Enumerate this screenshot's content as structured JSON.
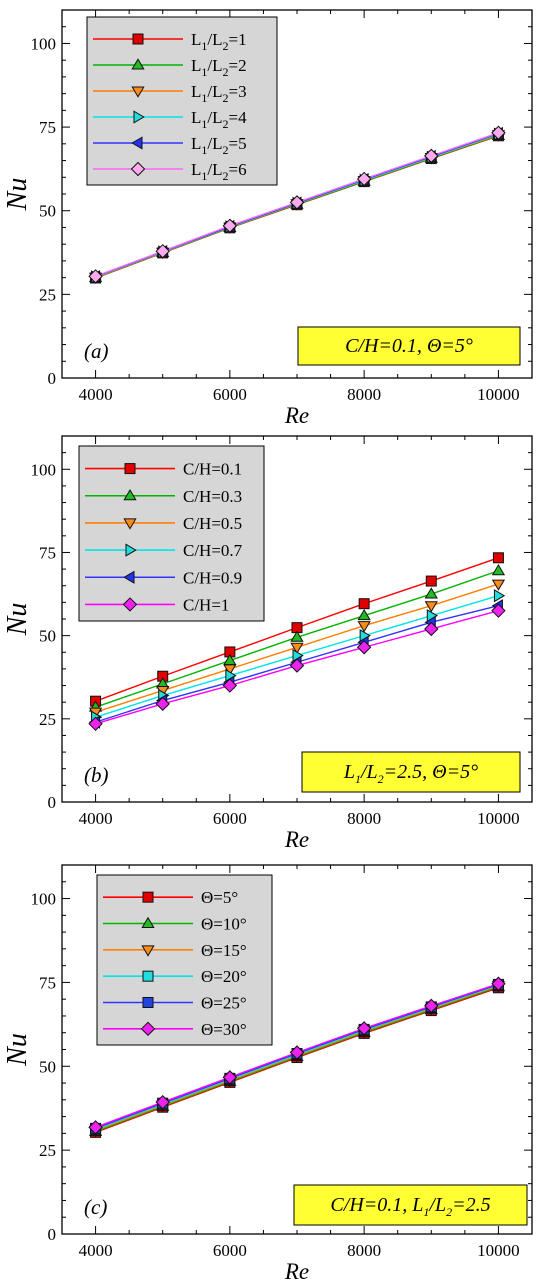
{
  "chart_data": [
    {
      "type": "line",
      "panel_label": "(a)",
      "xlabel": "Re",
      "ylabel": "Nu",
      "xlim": [
        3500,
        10500
      ],
      "ylim": [
        0,
        110
      ],
      "xticks": [
        4000,
        6000,
        8000,
        10000
      ],
      "yticks": [
        0,
        25,
        50,
        75,
        100
      ],
      "x": [
        4000,
        5000,
        6000,
        7000,
        8000,
        9000,
        10000
      ],
      "annotation": {
        "parts": [
          [
            "C/H=0.1,  ",
            "n"
          ],
          [
            "Θ",
            "n"
          ],
          [
            "=5°",
            "n"
          ]
        ]
      },
      "legend_placement": "top-left",
      "series": [
        {
          "name": "L1/L2=1",
          "label_parts": [
            [
              "L",
              "n"
            ],
            [
              "1",
              "sub"
            ],
            [
              "/L",
              "n"
            ],
            [
              "2",
              "sub"
            ],
            [
              "=1",
              "n"
            ]
          ],
          "color": "#ff0000",
          "marker_fill": "#e00000",
          "marker": "square",
          "values": [
            29.9,
            37.4,
            44.9,
            51.8,
            58.7,
            65.6,
            72.4
          ]
        },
        {
          "name": "L1/L2=2",
          "label_parts": [
            [
              "L",
              "n"
            ],
            [
              "1",
              "sub"
            ],
            [
              "/L",
              "n"
            ],
            [
              "2",
              "sub"
            ],
            [
              "=2",
              "n"
            ]
          ],
          "color": "#00b400",
          "marker_fill": "#22bb22",
          "marker": "triangle-up",
          "values": [
            30.0,
            37.5,
            45.0,
            51.9,
            58.8,
            65.7,
            72.5
          ]
        },
        {
          "name": "L1/L2=3",
          "label_parts": [
            [
              "L",
              "n"
            ],
            [
              "1",
              "sub"
            ],
            [
              "/L",
              "n"
            ],
            [
              "2",
              "sub"
            ],
            [
              "=3",
              "n"
            ]
          ],
          "color": "#ff7f00",
          "marker_fill": "#ff8c1a",
          "marker": "triangle-down",
          "values": [
            30.1,
            37.6,
            45.1,
            52.1,
            59.0,
            65.9,
            72.7
          ]
        },
        {
          "name": "L1/L2=4",
          "label_parts": [
            [
              "L",
              "n"
            ],
            [
              "1",
              "sub"
            ],
            [
              "/L",
              "n"
            ],
            [
              "2",
              "sub"
            ],
            [
              "=4",
              "n"
            ]
          ],
          "color": "#00e5e5",
          "marker_fill": "#22dddd",
          "marker": "triangle-right",
          "values": [
            30.2,
            37.7,
            45.2,
            52.2,
            59.1,
            66.0,
            72.9
          ]
        },
        {
          "name": "L1/L2=5",
          "label_parts": [
            [
              "L",
              "n"
            ],
            [
              "1",
              "sub"
            ],
            [
              "/L",
              "n"
            ],
            [
              "2",
              "sub"
            ],
            [
              "=5",
              "n"
            ]
          ],
          "color": "#3333ff",
          "marker_fill": "#2233ee",
          "marker": "triangle-left",
          "values": [
            30.3,
            37.8,
            45.3,
            52.3,
            59.3,
            66.2,
            73.1
          ]
        },
        {
          "name": "L1/L2=6",
          "label_parts": [
            [
              "L",
              "n"
            ],
            [
              "1",
              "sub"
            ],
            [
              "/L",
              "n"
            ],
            [
              "2",
              "sub"
            ],
            [
              "=6",
              "n"
            ]
          ],
          "color": "#ff66ff",
          "marker_fill": "#ffaaee",
          "marker": "diamond",
          "values": [
            30.4,
            37.9,
            45.5,
            52.5,
            59.5,
            66.4,
            73.3
          ]
        }
      ]
    },
    {
      "type": "line",
      "panel_label": "(b)",
      "xlabel": "Re",
      "ylabel": "Nu",
      "xlim": [
        3500,
        10500
      ],
      "ylim": [
        0,
        110
      ],
      "xticks": [
        4000,
        6000,
        8000,
        10000
      ],
      "yticks": [
        0,
        25,
        50,
        75,
        100
      ],
      "x": [
        4000,
        5000,
        6000,
        7000,
        8000,
        9000,
        10000
      ],
      "annotation": {
        "parts": [
          [
            "L",
            "i"
          ],
          [
            "1",
            "isub"
          ],
          [
            "/L",
            "i"
          ],
          [
            "2",
            "isub"
          ],
          [
            "=2.5, ",
            "i"
          ],
          [
            "Θ",
            "i"
          ],
          [
            "=5°",
            "i"
          ]
        ]
      },
      "legend_placement": "top-left",
      "series": [
        {
          "name": "C/H=0.1",
          "label_parts": [
            [
              "C/H=0.1",
              "n"
            ]
          ],
          "color": "#ff0000",
          "marker_fill": "#e00000",
          "marker": "square",
          "values": [
            30.3,
            37.8,
            45.1,
            52.4,
            59.6,
            66.4,
            73.4
          ]
        },
        {
          "name": "C/H=0.3",
          "label_parts": [
            [
              "C/H=0.3",
              "n"
            ]
          ],
          "color": "#00b400",
          "marker_fill": "#22bb22",
          "marker": "triangle-up",
          "values": [
            28.5,
            35.5,
            42.5,
            49.5,
            56.0,
            62.5,
            69.5
          ]
        },
        {
          "name": "C/H=0.5",
          "label_parts": [
            [
              "C/H=0.5",
              "n"
            ]
          ],
          "color": "#ff7f00",
          "marker_fill": "#ff8c1a",
          "marker": "triangle-down",
          "values": [
            27.0,
            33.5,
            40.0,
            46.5,
            53.0,
            59.0,
            65.5
          ]
        },
        {
          "name": "C/H=0.7",
          "label_parts": [
            [
              "C/H=0.7",
              "n"
            ]
          ],
          "color": "#00e5e5",
          "marker_fill": "#22dddd",
          "marker": "triangle-right",
          "values": [
            25.5,
            32.0,
            38.0,
            44.0,
            50.0,
            56.0,
            62.0
          ]
        },
        {
          "name": "C/H=0.9",
          "label_parts": [
            [
              "C/H=0.9",
              "n"
            ]
          ],
          "color": "#3333ff",
          "marker_fill": "#2233ee",
          "marker": "triangle-left",
          "values": [
            24.0,
            30.5,
            36.0,
            42.0,
            48.0,
            54.0,
            59.0
          ]
        },
        {
          "name": "C/H=1",
          "label_parts": [
            [
              "C/H=1",
              "n"
            ]
          ],
          "color": "#ff00ff",
          "marker_fill": "#ee22ee",
          "marker": "diamond",
          "values": [
            23.5,
            29.5,
            35.0,
            41.0,
            46.5,
            52.0,
            57.5
          ]
        }
      ]
    },
    {
      "type": "line",
      "panel_label": "(c)",
      "xlabel": "Re",
      "ylabel": "Nu",
      "xlim": [
        3500,
        10500
      ],
      "ylim": [
        0,
        110
      ],
      "xticks": [
        4000,
        6000,
        8000,
        10000
      ],
      "yticks": [
        0,
        25,
        50,
        75,
        100
      ],
      "x": [
        4000,
        5000,
        6000,
        7000,
        8000,
        9000,
        10000
      ],
      "annotation": {
        "parts": [
          [
            "C/H=0.1, L",
            "i"
          ],
          [
            "1",
            "isub"
          ],
          [
            "/L",
            "i"
          ],
          [
            "2",
            "isub"
          ],
          [
            "=2.5",
            "i"
          ]
        ]
      },
      "legend_placement": "top-left",
      "series": [
        {
          "name": "Θ=5°",
          "label_parts": [
            [
              "Θ=5°",
              "n"
            ]
          ],
          "color": "#ff0000",
          "marker_fill": "#e00000",
          "marker": "square",
          "values": [
            30.3,
            37.8,
            45.2,
            52.6,
            59.8,
            66.6,
            73.4
          ]
        },
        {
          "name": "Θ=10°",
          "label_parts": [
            [
              "Θ=10°",
              "n"
            ]
          ],
          "color": "#00b400",
          "marker_fill": "#22bb22",
          "marker": "triangle-up",
          "values": [
            30.6,
            38.1,
            45.5,
            52.9,
            60.1,
            66.9,
            73.7
          ]
        },
        {
          "name": "Θ=15°",
          "label_parts": [
            [
              "Θ=15°",
              "n"
            ]
          ],
          "color": "#ff7f00",
          "marker_fill": "#ff8c1a",
          "marker": "triangle-down",
          "values": [
            30.9,
            38.4,
            45.8,
            53.2,
            60.4,
            67.2,
            74.0
          ]
        },
        {
          "name": "Θ=20°",
          "label_parts": [
            [
              "Θ=20°",
              "n"
            ]
          ],
          "color": "#00e5e5",
          "marker_fill": "#22dddd",
          "marker": "square",
          "values": [
            31.2,
            38.7,
            46.1,
            53.5,
            60.7,
            67.5,
            74.2
          ]
        },
        {
          "name": "Θ=25°",
          "label_parts": [
            [
              "Θ=25°",
              "n"
            ]
          ],
          "color": "#3333ff",
          "marker_fill": "#2244dd",
          "marker": "square",
          "values": [
            31.5,
            39.0,
            46.4,
            53.8,
            61.0,
            67.7,
            74.4
          ]
        },
        {
          "name": "Θ=30°",
          "label_parts": [
            [
              "Θ=30°",
              "n"
            ]
          ],
          "color": "#ff00ff",
          "marker_fill": "#ee22ee",
          "marker": "diamond",
          "values": [
            31.8,
            39.3,
            46.7,
            54.1,
            61.3,
            68.0,
            74.6
          ]
        }
      ]
    }
  ]
}
